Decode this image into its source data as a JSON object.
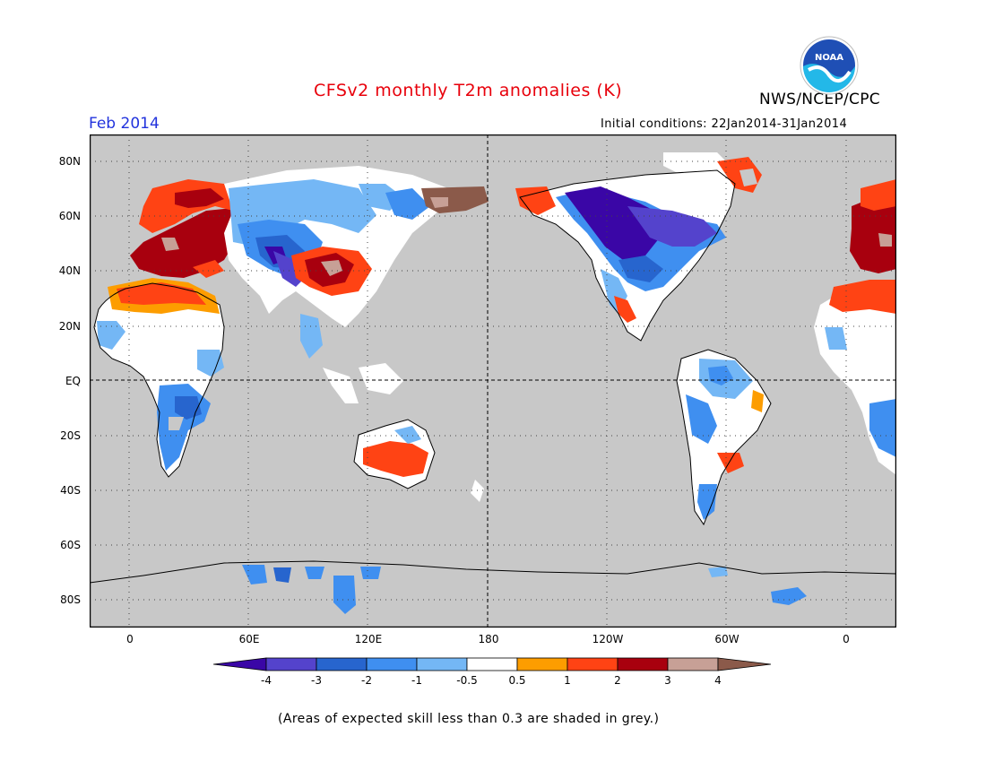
{
  "header": {
    "title": "CFSv2 monthly T2m anomalies (K)",
    "agency": "NWS/NCEP/CPC",
    "month": "Feb 2014",
    "initial_conditions": "Initial conditions: 22Jan2014-31Jan2014",
    "logo_text": "NOAA"
  },
  "map": {
    "projection": "cylindrical equidistant",
    "lat_ticks": [
      "80N",
      "60N",
      "40N",
      "20N",
      "EQ",
      "20S",
      "40S",
      "60S",
      "80S"
    ],
    "lon_ticks": [
      "0",
      "60E",
      "120E",
      "180",
      "120W",
      "60W",
      "0"
    ],
    "ocean_color": "#c8c8c8",
    "coastline_color": "#000000",
    "gridline_style": "dotted",
    "reference_lines": [
      "equator",
      "dateline"
    ]
  },
  "colorbar": {
    "labels": [
      "-4",
      "-3",
      "-2",
      "-1",
      "-0.5",
      "0.5",
      "1",
      "2",
      "3",
      "4"
    ],
    "colors": [
      "#3a06a6",
      "#5443cc",
      "#2765ce",
      "#3f8ff0",
      "#74b7f5",
      "#ffffff",
      "#fd9d00",
      "#ff4314",
      "#a8000e",
      "#c7a096",
      "#8b5a4a"
    ]
  },
  "footnote": "(Areas of expected skill less than 0.3 are shaded in grey.)"
}
